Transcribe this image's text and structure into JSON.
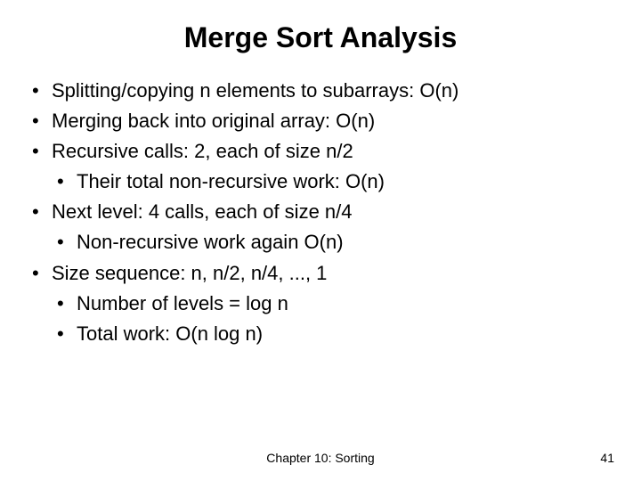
{
  "title": "Merge Sort Analysis",
  "bullets": {
    "b1": "Splitting/copying n elements to subarrays: O(n)",
    "b2": "Merging back into original array: O(n)",
    "b3": "Recursive calls: 2, each of size n/2",
    "b3_1": "Their total non-recursive work: O(n)",
    "b4": "Next level: 4 calls, each of size n/4",
    "b4_1": "Non-recursive work again O(n)",
    "b5": "Size sequence: n, n/2, n/4, ..., 1",
    "b5_1": "Number of levels = log n",
    "b5_2": "Total work: O(n log n)"
  },
  "footer": {
    "chapter": "Chapter 10: Sorting",
    "page": "41"
  },
  "style": {
    "title_fontsize": 32,
    "body_fontsize": 22,
    "footer_fontsize": 14,
    "text_color": "#000000",
    "background_color": "#ffffff",
    "font_family": "Arial"
  }
}
